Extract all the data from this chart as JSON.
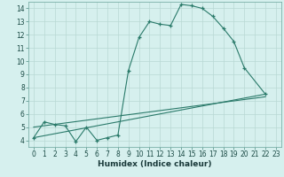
{
  "xlabel": "Humidex (Indice chaleur)",
  "series": {
    "curve": {
      "x": [
        0,
        1,
        2,
        3,
        4,
        5,
        6,
        7,
        8,
        9,
        10,
        11,
        12,
        13,
        14,
        15,
        16,
        17,
        18,
        19,
        20,
        22
      ],
      "y": [
        4.2,
        5.4,
        5.2,
        5.1,
        3.9,
        5.0,
        4.0,
        4.2,
        4.4,
        9.3,
        11.8,
        13.0,
        12.8,
        12.7,
        14.3,
        14.2,
        14.0,
        13.4,
        12.5,
        11.5,
        9.5,
        7.5
      ]
    },
    "linear1": {
      "x": [
        0,
        22
      ],
      "y": [
        4.2,
        7.5
      ]
    },
    "linear2": {
      "x": [
        0,
        22
      ],
      "y": [
        5.0,
        7.3
      ]
    }
  },
  "color": "#2a7a6a",
  "bg_color": "#d6f0ee",
  "grid_color": "#b8d8d4",
  "xlim": [
    -0.5,
    23.5
  ],
  "ylim": [
    3.5,
    14.5
  ],
  "yticks": [
    4,
    5,
    6,
    7,
    8,
    9,
    10,
    11,
    12,
    13,
    14
  ],
  "xticks": [
    0,
    1,
    2,
    3,
    4,
    5,
    6,
    7,
    8,
    9,
    10,
    11,
    12,
    13,
    14,
    15,
    16,
    17,
    18,
    19,
    20,
    21,
    22,
    23
  ],
  "tick_fontsize": 5.5,
  "xlabel_fontsize": 6.5
}
